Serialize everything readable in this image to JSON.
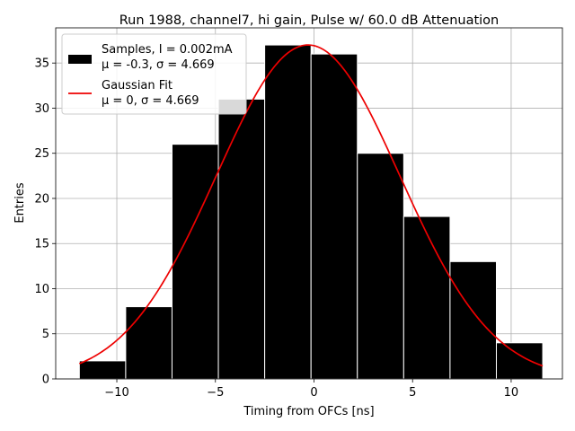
{
  "chart_data": {
    "type": "bar",
    "title": "Run 1988, channel7, hi gain, Pulse w/ 60.0 dB Attenuation",
    "xlabel": "Timing from OFCs [ns]",
    "ylabel": "Entries",
    "xlim": [
      -13.1,
      12.6
    ],
    "ylim": [
      0,
      38.9
    ],
    "grid": true,
    "xticks": [
      -10,
      -5,
      0,
      5,
      10
    ],
    "xtick_labels": [
      "−10",
      "−5",
      "0",
      "5",
      "10"
    ],
    "yticks": [
      0,
      5,
      10,
      15,
      20,
      25,
      30,
      35
    ],
    "ytick_labels": [
      "0",
      "5",
      "10",
      "15",
      "20",
      "25",
      "30",
      "35"
    ],
    "histogram": {
      "name": "Samples, I = 0.002mA",
      "stats_label": "μ = -0.3, σ = 4.669",
      "color": "#000000",
      "edge_color": "#ffffff",
      "bin_edges": [
        -11.9,
        -9.55,
        -7.2,
        -4.85,
        -2.5,
        -0.15,
        2.2,
        4.55,
        6.9,
        9.25,
        11.6
      ],
      "counts": [
        2,
        8,
        26,
        31,
        37,
        36,
        25,
        18,
        13,
        4
      ]
    },
    "fit": {
      "name": "Gaussian Fit",
      "stats_label": "μ = 0, σ = 4.669",
      "color": "#ee0000",
      "mu": -0.3,
      "sigma": 4.669,
      "amplitude": 37,
      "x_range": [
        -11.9,
        11.6
      ]
    },
    "legend_position": "top-left"
  }
}
